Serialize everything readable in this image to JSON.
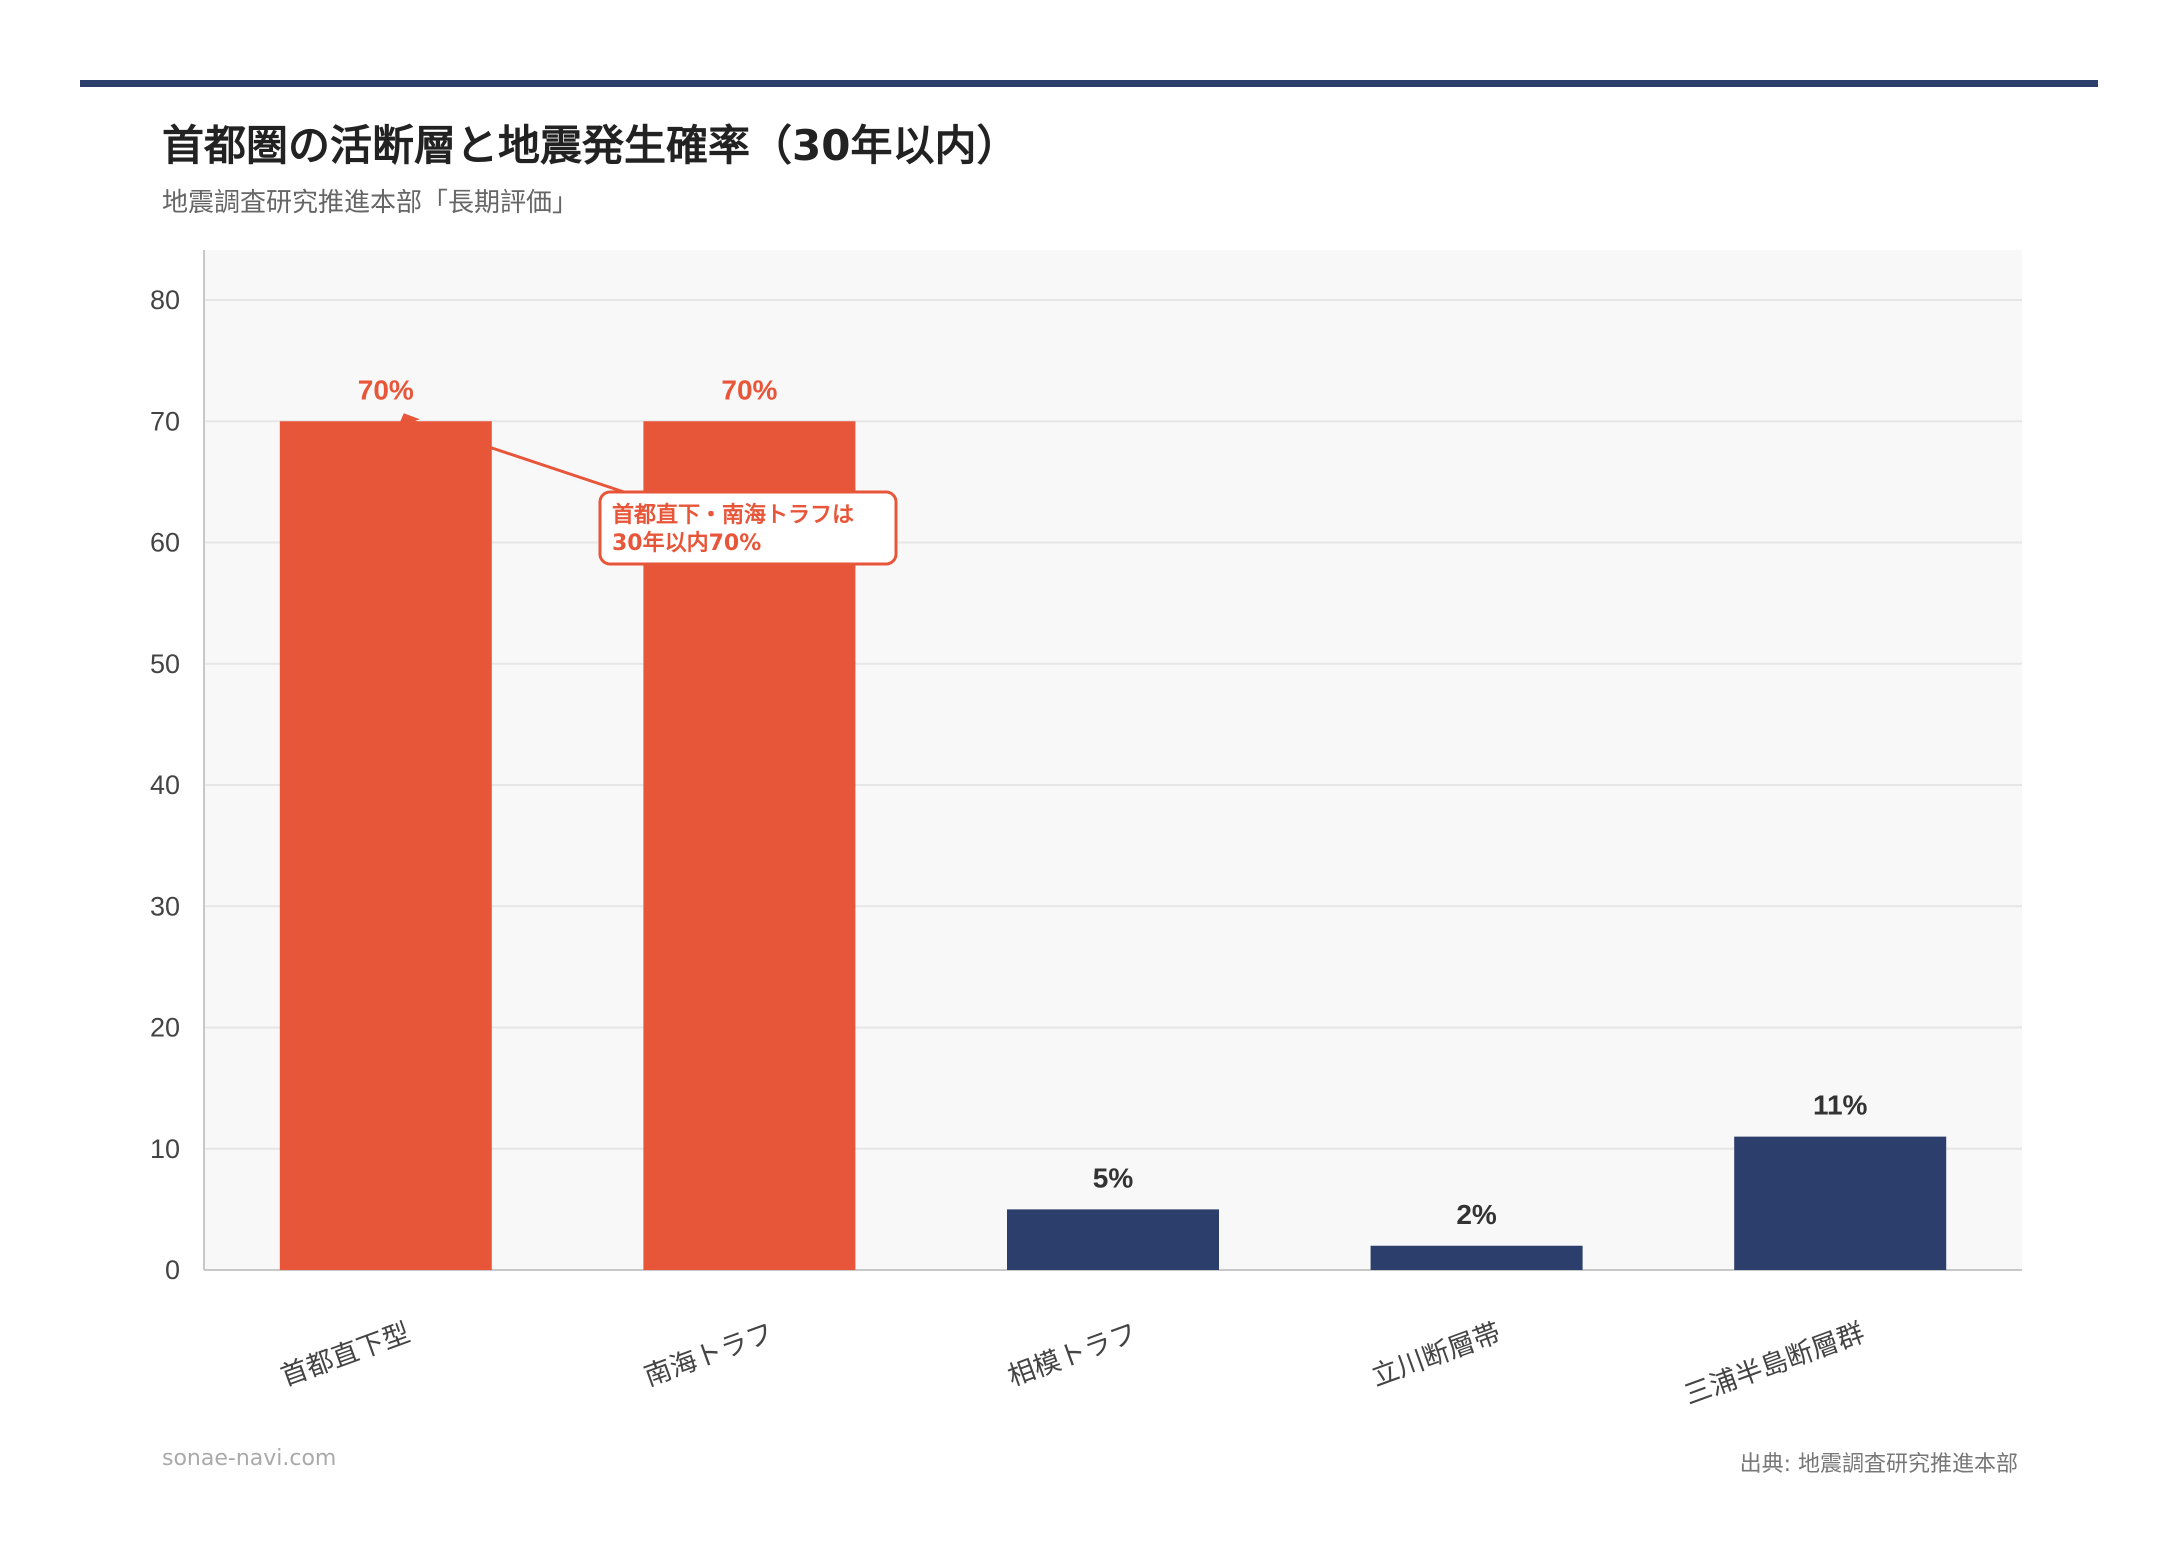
{
  "title": "首都圏の活断層と地震発生確率（30年以内）",
  "subtitle": "地震調査研究推進本部「長期評価」",
  "footer": {
    "site": "sonae-navi.com",
    "source": "出典: 地震調査研究推進本部"
  },
  "colors": {
    "highlight": "#e8563a",
    "normal": "#2c3e6b",
    "plot_bg": "#f8f8f8",
    "grid": "#e6e6e6"
  },
  "chart_data": {
    "type": "bar",
    "categories": [
      "首都直下型",
      "南海トラフ",
      "相模トラフ",
      "立川断層帯",
      "三浦半島断層群"
    ],
    "values": [
      70,
      70,
      5,
      2,
      11
    ],
    "value_labels": [
      "70%",
      "70%",
      "5%",
      "2%",
      "11%"
    ],
    "highlight": [
      true,
      true,
      false,
      false,
      false
    ],
    "ylim": [
      0,
      80
    ],
    "yticks": [
      0,
      10,
      20,
      30,
      40,
      50,
      60,
      70,
      80
    ],
    "grid": true,
    "xlabel": "",
    "ylabel": "",
    "annotation": {
      "lines": [
        "首都直下・南海トラフは",
        "30年以内70%"
      ],
      "target_index": 0
    }
  }
}
